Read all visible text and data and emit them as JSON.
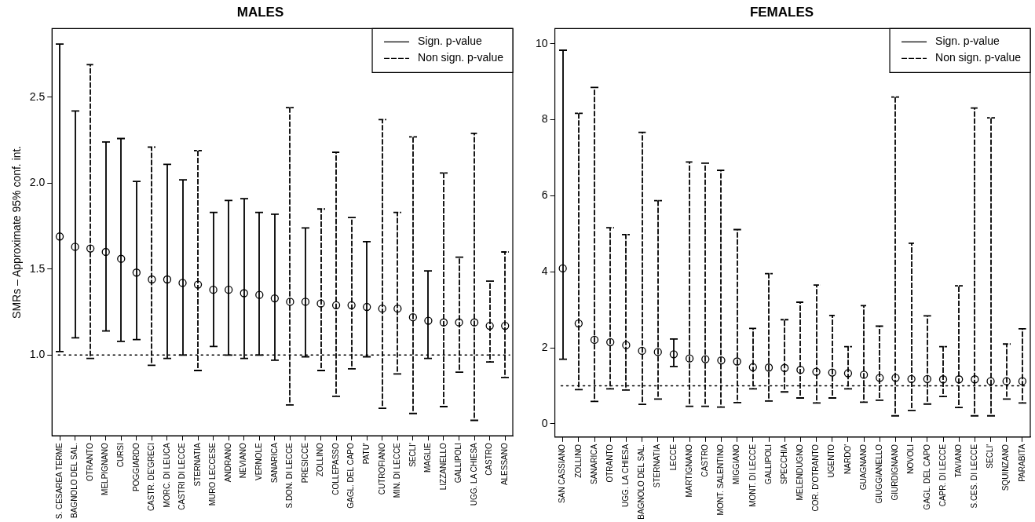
{
  "chart_data": [
    {
      "type": "scatter",
      "title": "MALES",
      "ylabel": "SMRs – Approximate 95% conf. int.",
      "categories": [
        "S. CESAREA TERME",
        "BAGNOLO DEL SAL.",
        "OTRANTO",
        "MELPIGNANO",
        "CURSI",
        "POGGIARDO",
        "CASTR. DE'GRECI",
        "MORC. DI LEUCA",
        "CASTRI DI LECCE",
        "STERNATIA",
        "MURO LECCESE",
        "ANDRANO",
        "NEVIANO",
        "VERNOLE",
        "SANARICA",
        "S.DON. DI LECCE",
        "PRESICCE",
        "ZOLLINO",
        "COLLEPASSO",
        "GAGL. DEL CAPO",
        "PATU'",
        "CUTROFIANO",
        "MIN. DI LECCE",
        "SECLI'",
        "MAGLIE",
        "LIZZANELLO",
        "GALLIPOLI",
        "UGG. LA CHIESA",
        "CASTRO",
        "ALESSANO"
      ],
      "series": [
        {
          "name": "Sign. p-value",
          "color": "#000000",
          "line_style": "solid",
          "values": [
            1.69,
            1.63,
            null,
            1.6,
            1.56,
            1.48,
            null,
            1.44,
            1.42,
            null,
            1.38,
            1.38,
            1.36,
            1.35,
            1.33,
            null,
            1.31,
            null,
            null,
            null,
            1.28,
            null,
            null,
            null,
            1.2,
            null,
            null,
            null,
            null,
            null
          ],
          "errors": [
            [
              1.02,
              2.81
            ],
            [
              1.1,
              2.42
            ],
            null,
            [
              1.14,
              2.24
            ],
            [
              1.08,
              2.26
            ],
            [
              1.09,
              2.01
            ],
            null,
            [
              0.98,
              2.11
            ],
            [
              1.0,
              2.02
            ],
            null,
            [
              1.05,
              1.83
            ],
            [
              1.0,
              1.9
            ],
            [
              0.98,
              1.91
            ],
            [
              1.0,
              1.83
            ],
            [
              0.97,
              1.82
            ],
            null,
            [
              0.99,
              1.74
            ],
            null,
            null,
            null,
            [
              0.99,
              1.66
            ],
            null,
            null,
            null,
            [
              0.98,
              1.49
            ],
            null,
            null,
            null,
            null,
            null
          ]
        },
        {
          "name": "Non sign. p-value",
          "color": "#000000",
          "line_style": "dashed",
          "values": [
            null,
            null,
            1.62,
            null,
            null,
            null,
            1.44,
            null,
            null,
            1.41,
            null,
            null,
            null,
            null,
            null,
            1.31,
            null,
            1.3,
            1.29,
            1.29,
            null,
            1.27,
            1.27,
            1.22,
            null,
            1.19,
            1.19,
            1.19,
            1.17,
            1.17
          ],
          "errors": [
            null,
            null,
            [
              0.98,
              2.69
            ],
            null,
            null,
            null,
            [
              0.94,
              2.21
            ],
            null,
            null,
            [
              0.91,
              2.19
            ],
            null,
            null,
            null,
            null,
            null,
            [
              0.71,
              2.44
            ],
            null,
            [
              0.91,
              1.85
            ],
            [
              0.76,
              2.18
            ],
            [
              0.92,
              1.8
            ],
            null,
            [
              0.69,
              2.37
            ],
            [
              0.89,
              1.83
            ],
            [
              0.66,
              2.27
            ],
            null,
            [
              0.7,
              2.06
            ],
            [
              0.9,
              1.57
            ],
            [
              0.62,
              2.29
            ],
            [
              0.96,
              1.43
            ],
            [
              0.87,
              1.6
            ]
          ]
        }
      ],
      "ylim": [
        0.53,
        2.9
      ],
      "yticks": [
        {
          "value": 1,
          "label": "1.0"
        },
        {
          "value": 1.5,
          "label": "1.5"
        },
        {
          "value": 2,
          "label": "2.0"
        },
        {
          "value": 2.5,
          "label": "2.5"
        }
      ],
      "ref_lines": [
        {
          "axis": "y",
          "value": 1,
          "line_style": "dotted"
        }
      ],
      "legend": "top right",
      "marker": "circle"
    },
    {
      "type": "scatter",
      "title": "FEMALES",
      "categories": [
        "SAN CASSIANO",
        "ZOLLINO",
        "SANARICA",
        "OTRANTO",
        "UGG. LA CHIESA",
        "BAGNOLO DEL SAL.",
        "STERNATIA",
        "LECCE",
        "MARTIGNANO",
        "CASTRO",
        "MONT. SALENTINO",
        "MIGGIANO",
        "MONT. DI LECCE",
        "GALLIPOLI",
        "SPECCHIA",
        "MELENDUGNO",
        "COR. D'OTRANTO",
        "UGENTO",
        "NARDO'",
        "GUAGNANO",
        "GIUGGIANELLO",
        "GIURDIGNANO",
        "NOVOLI",
        "GAGL. DEL CAPO",
        "CAPR. DI LECCE",
        "TAVIANO",
        "S.CES. DI LECCE",
        "SECLI'",
        "SQUINZANO",
        "PARABITA"
      ],
      "series": [
        {
          "name": "Sign. p-value",
          "color": "#000000",
          "line_style": "solid",
          "values": [
            4.09,
            null,
            null,
            null,
            null,
            null,
            null,
            1.83,
            null,
            null,
            null,
            null,
            null,
            null,
            null,
            null,
            null,
            null,
            null,
            null,
            null,
            null,
            null,
            null,
            null,
            null,
            null,
            null,
            null,
            null
          ],
          "errors": [
            [
              1.7,
              9.83
            ],
            null,
            null,
            null,
            null,
            null,
            null,
            [
              1.51,
              2.23
            ],
            null,
            null,
            null,
            null,
            null,
            null,
            null,
            null,
            null,
            null,
            null,
            null,
            null,
            null,
            null,
            null,
            null,
            null,
            null,
            null,
            null,
            null
          ]
        },
        {
          "name": "Non sign. p-value",
          "color": "#000000",
          "line_style": "dashed",
          "values": [
            null,
            2.64,
            2.21,
            2.15,
            2.07,
            1.92,
            1.89,
            null,
            1.72,
            1.7,
            1.67,
            1.64,
            1.49,
            1.48,
            1.47,
            1.42,
            1.37,
            1.35,
            1.33,
            1.29,
            1.21,
            1.21,
            1.18,
            1.18,
            1.17,
            1.17,
            1.17,
            1.12,
            1.12,
            1.12
          ],
          "errors": [
            null,
            [
              0.9,
              8.17
            ],
            [
              0.59,
              8.85
            ],
            [
              0.92,
              5.16
            ],
            [
              0.89,
              4.98
            ],
            [
              0.51,
              7.67
            ],
            [
              0.65,
              5.87
            ],
            null,
            [
              0.46,
              6.89
            ],
            [
              0.46,
              6.86
            ],
            [
              0.44,
              6.67
            ],
            [
              0.56,
              5.11
            ],
            [
              0.92,
              2.51
            ],
            [
              0.6,
              3.95
            ],
            [
              0.84,
              2.74
            ],
            [
              0.68,
              3.2
            ],
            [
              0.55,
              3.65
            ],
            [
              0.68,
              2.85
            ],
            [
              0.92,
              2.03
            ],
            [
              0.57,
              3.11
            ],
            [
              0.62,
              2.57
            ],
            [
              0.21,
              8.6
            ],
            [
              0.35,
              4.75
            ],
            [
              0.52,
              2.84
            ],
            [
              0.72,
              2.03
            ],
            [
              0.43,
              3.63
            ],
            [
              0.21,
              8.31
            ],
            [
              0.21,
              8.05
            ],
            [
              0.65,
              2.1
            ],
            [
              0.55,
              2.5
            ]
          ]
        }
      ],
      "ylim": [
        -0.35,
        10.4
      ],
      "yticks": [
        0,
        2,
        4,
        6,
        8,
        10
      ],
      "ref_lines": [
        {
          "axis": "y",
          "value": 1,
          "line_style": "dotted"
        }
      ],
      "legend": "top right",
      "marker": "circle"
    }
  ]
}
